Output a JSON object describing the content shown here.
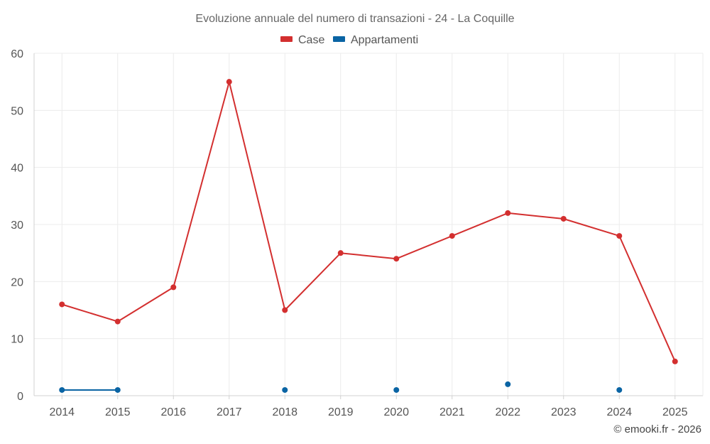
{
  "chart_data": {
    "type": "line",
    "title": "Evoluzione annuale del numero di transazioni - 24 - La Coquille",
    "xlabel": "",
    "ylabel": "",
    "ylim": [
      0,
      60
    ],
    "yticks": [
      0,
      10,
      20,
      30,
      40,
      50,
      60
    ],
    "grid": true,
    "legend_position": "top-center",
    "categories": [
      "2014",
      "2015",
      "2016",
      "2017",
      "2018",
      "2019",
      "2020",
      "2021",
      "2022",
      "2023",
      "2024",
      "2025"
    ],
    "series": [
      {
        "name": "Case",
        "color": "#d32f2f",
        "values": [
          16,
          13,
          19,
          55,
          15,
          25,
          24,
          28,
          32,
          31,
          28,
          6
        ]
      },
      {
        "name": "Appartamenti",
        "color": "#0a64a4",
        "values": [
          1,
          1,
          null,
          null,
          1,
          null,
          1,
          null,
          2,
          null,
          1,
          null
        ]
      }
    ]
  },
  "credit": "© emooki.fr - 2026"
}
